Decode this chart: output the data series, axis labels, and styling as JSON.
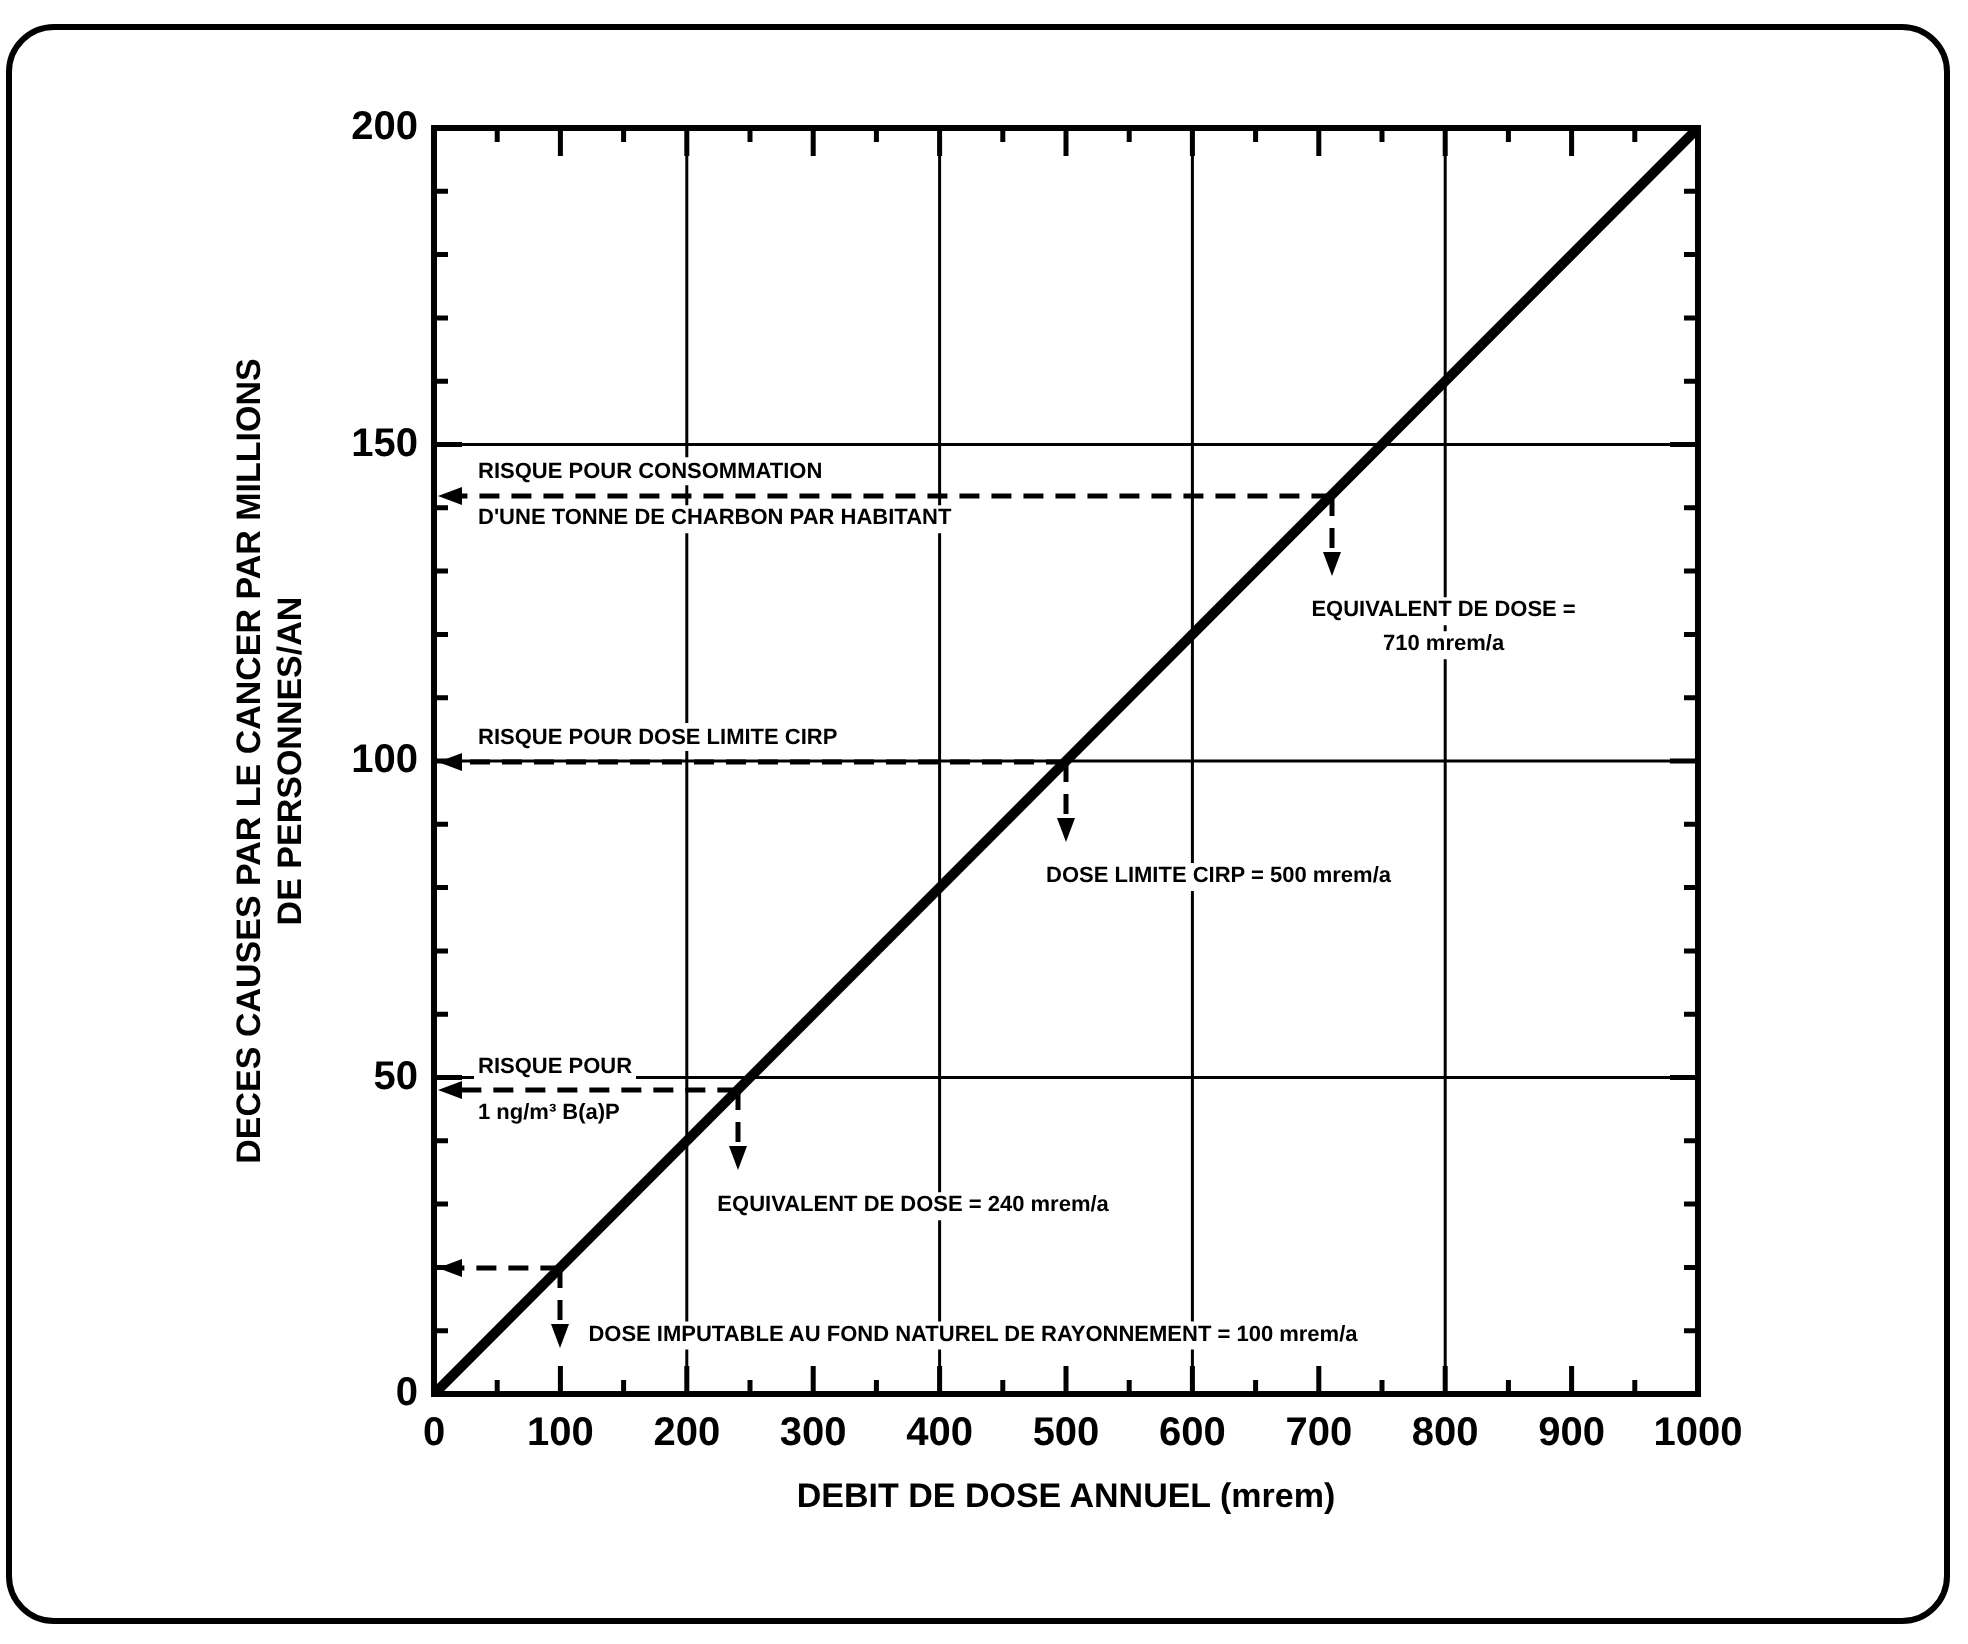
{
  "chart_data": {
    "type": "line",
    "xlabel": "DEBIT DE DOSE ANNUEL (mrem)",
    "ylabel": "DECES CAUSES PAR LE CANCER PAR MILLIONS\nDE PERSONNES/AN",
    "series": [
      {
        "type": "line",
        "x": [
          0,
          1000
        ],
        "values": [
          0,
          200
        ],
        "color": "#000000"
      }
    ],
    "xlim": [
      0,
      1000
    ],
    "ylim": [
      0,
      200
    ],
    "xticks": [
      0,
      {
        "value": 50,
        "label": null
      },
      100,
      {
        "value": 150,
        "label": null
      },
      200,
      {
        "value": 250,
        "label": null
      },
      300,
      {
        "value": 350,
        "label": null
      },
      400,
      {
        "value": 450,
        "label": null
      },
      500,
      {
        "value": 550,
        "label": null
      },
      600,
      {
        "value": 650,
        "label": null
      },
      700,
      {
        "value": 750,
        "label": null
      },
      800,
      {
        "value": 850,
        "label": null
      },
      900,
      {
        "value": 950,
        "label": null
      },
      1000
    ],
    "yticks": [
      0,
      {
        "value": 10,
        "label": null
      },
      {
        "value": 20,
        "label": null
      },
      {
        "value": 30,
        "label": null
      },
      {
        "value": 40,
        "label": null
      },
      50,
      {
        "value": 60,
        "label": null
      },
      {
        "value": 70,
        "label": null
      },
      {
        "value": 80,
        "label": null
      },
      {
        "value": 90,
        "label": null
      },
      100,
      {
        "value": 110,
        "label": null
      },
      {
        "value": 120,
        "label": null
      },
      {
        "value": 130,
        "label": null
      },
      {
        "value": 140,
        "label": null
      },
      150,
      {
        "value": 160,
        "label": null
      },
      {
        "value": 170,
        "label": null
      },
      {
        "value": 180,
        "label": null
      },
      {
        "value": 190,
        "label": null
      },
      200
    ],
    "grid": true,
    "marker": "none",
    "line_style": "solid",
    "annotations": [
      {
        "text": "RISQUE POUR CONSOMMATION\nD'UNE TONNE DE CHARBON PAR HABITANT",
        "x": 710,
        "y": 142
      },
      "EQUIVALENT DE DOSE =\n710 mrem/a",
      {
        "text": "RISQUE POUR DOSE LIMITE CIRP",
        "x": 500,
        "y": 100
      },
      "DOSE LIMITE CIRP = 500 mrem/a",
      {
        "text": "RISQUE POUR\n1 ng/m³ B(a)P",
        "x": 240,
        "y": 48
      },
      "EQUIVALENT DE DOSE = 240 mrem/a",
      {
        "text": "DOSE IMPUTABLE AU FOND NATUREL DE RAYONNEMENT = 100 mrem/a",
        "x": 100,
        "y": 20
      }
    ]
  }
}
